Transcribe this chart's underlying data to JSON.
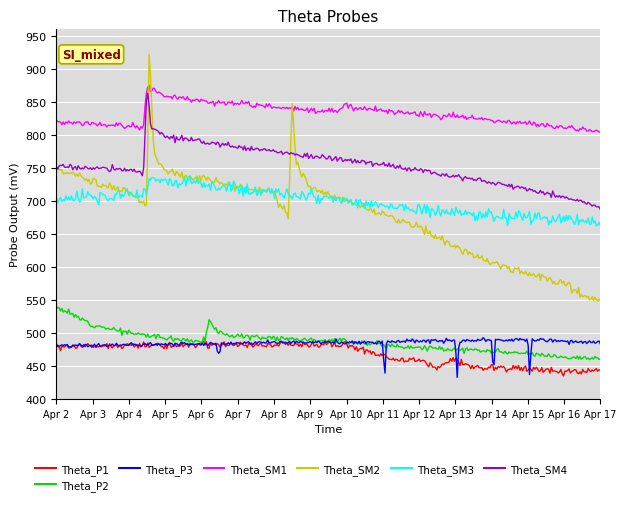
{
  "title": "Theta Probes",
  "xlabel": "Time",
  "ylabel": "Probe Output (mV)",
  "ylim": [
    400,
    960
  ],
  "yticks": [
    400,
    450,
    500,
    550,
    600,
    650,
    700,
    750,
    800,
    850,
    900,
    950
  ],
  "xtick_labels": [
    "Apr 2",
    "Apr 3",
    "Apr 4",
    "Apr 5",
    "Apr 6",
    "Apr 7",
    "Apr 8",
    "Apr 9",
    "Apr 10",
    "Apr 11",
    "Apr 12",
    "Apr 13",
    "Apr 14",
    "Apr 15",
    "Apr 16",
    "Apr 17"
  ],
  "annotation_text": "SI_mixed",
  "annotation_color": "#8B0000",
  "annotation_bg": "#FFFF99",
  "bg_color": "#DCDCDC",
  "grid_color": "#FFFFFF",
  "colors": {
    "Theta_P1": "#FF0000",
    "Theta_P2": "#00DD00",
    "Theta_P3": "#0000FF",
    "Theta_SM1": "#FF00FF",
    "Theta_SM2": "#CCCC00",
    "Theta_SM3": "#00FFFF",
    "Theta_SM4": "#9900CC"
  },
  "legend_order": [
    "Theta_P1",
    "Theta_P2",
    "Theta_P3",
    "Theta_SM1",
    "Theta_SM2",
    "Theta_SM3",
    "Theta_SM4"
  ]
}
